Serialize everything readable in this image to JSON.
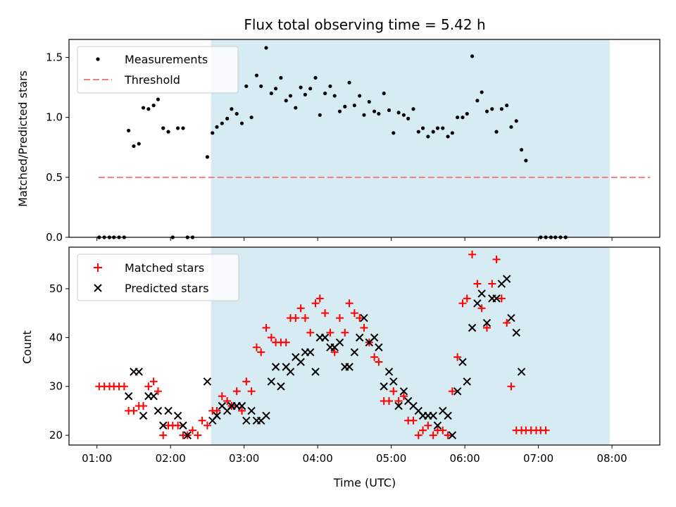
{
  "chart_data": [
    {
      "type": "scatter",
      "title": "Flux total observing time = 5.42 h",
      "ylabel": "Matched/Predicted stars",
      "ylim": [
        0,
        1.65
      ],
      "yticks": [
        "0.0",
        "0.5",
        "1.0",
        "1.5"
      ],
      "xlim": [
        0.62,
        8.65
      ],
      "shaded_span": [
        2.55,
        7.97
      ],
      "shade_color": "#add8e6",
      "threshold": {
        "value": 0.5,
        "x_range": [
          1.02,
          8.52
        ],
        "color": "#f08080"
      },
      "legend_position": "upper left",
      "legend": [
        {
          "label": "Measurements",
          "marker": "dot",
          "color": "#000000"
        },
        {
          "label": "Threshold",
          "marker": "dashed-line",
          "color": "#f08080"
        }
      ],
      "series": [
        {
          "name": "Measurements",
          "points": [
            [
              1.03,
              0
            ],
            [
              1.1,
              0
            ],
            [
              1.17,
              0
            ],
            [
              1.23,
              0
            ],
            [
              1.3,
              0
            ],
            [
              1.37,
              0
            ],
            [
              1.43,
              0.89
            ],
            [
              1.5,
              0.76
            ],
            [
              1.57,
              0.78
            ],
            [
              1.63,
              1.08
            ],
            [
              1.7,
              1.07
            ],
            [
              1.77,
              1.1
            ],
            [
              1.83,
              1.15
            ],
            [
              1.9,
              0.91
            ],
            [
              1.97,
              0.88
            ],
            [
              2.03,
              0
            ],
            [
              2.1,
              0.91
            ],
            [
              2.17,
              0.91
            ],
            [
              2.23,
              0
            ],
            [
              2.3,
              0
            ],
            [
              2.5,
              0.67
            ],
            [
              2.57,
              0.87
            ],
            [
              2.63,
              0.92
            ],
            [
              2.7,
              0.95
            ],
            [
              2.77,
              0.99
            ],
            [
              2.83,
              1.07
            ],
            [
              2.9,
              1.03
            ],
            [
              2.97,
              0.95
            ],
            [
              3.03,
              1.26
            ],
            [
              3.1,
              1.0
            ],
            [
              3.17,
              1.35
            ],
            [
              3.23,
              1.26
            ],
            [
              3.3,
              1.58
            ],
            [
              3.37,
              1.2
            ],
            [
              3.43,
              1.24
            ],
            [
              3.5,
              1.33
            ],
            [
              3.57,
              1.14
            ],
            [
              3.63,
              1.18
            ],
            [
              3.7,
              1.08
            ],
            [
              3.77,
              1.25
            ],
            [
              3.83,
              1.19
            ],
            [
              3.9,
              1.24
            ],
            [
              3.97,
              1.33
            ],
            [
              4.03,
              1.02
            ],
            [
              4.1,
              1.2
            ],
            [
              4.17,
              1.26
            ],
            [
              4.23,
              1.18
            ],
            [
              4.3,
              1.05
            ],
            [
              4.37,
              1.09
            ],
            [
              4.43,
              1.29
            ],
            [
              4.5,
              1.1
            ],
            [
              4.57,
              1.18
            ],
            [
              4.63,
              1.02
            ],
            [
              4.7,
              1.13
            ],
            [
              4.77,
              1.05
            ],
            [
              4.83,
              1.03
            ],
            [
              4.9,
              1.2
            ],
            [
              4.97,
              1.06
            ],
            [
              5.03,
              0.87
            ],
            [
              5.1,
              1.04
            ],
            [
              5.17,
              1.02
            ],
            [
              5.23,
              0.99
            ],
            [
              5.3,
              1.07
            ],
            [
              5.37,
              0.88
            ],
            [
              5.43,
              0.91
            ],
            [
              5.5,
              0.84
            ],
            [
              5.57,
              0.88
            ],
            [
              5.63,
              0.91
            ],
            [
              5.7,
              0.91
            ],
            [
              5.77,
              0.84
            ],
            [
              5.83,
              0.87
            ],
            [
              5.9,
              1.0
            ],
            [
              5.97,
              1.0
            ],
            [
              6.03,
              1.03
            ],
            [
              6.1,
              1.51
            ],
            [
              6.17,
              1.14
            ],
            [
              6.23,
              1.21
            ],
            [
              6.3,
              1.05
            ],
            [
              6.37,
              1.07
            ],
            [
              6.43,
              0.88
            ],
            [
              6.5,
              1.07
            ],
            [
              6.57,
              1.1
            ],
            [
              6.63,
              0.92
            ],
            [
              6.7,
              0.97
            ],
            [
              6.77,
              0.73
            ],
            [
              6.83,
              0.64
            ],
            [
              7.03,
              0
            ],
            [
              7.1,
              0
            ],
            [
              7.17,
              0
            ],
            [
              7.23,
              0
            ],
            [
              7.3,
              0
            ],
            [
              7.37,
              0
            ]
          ]
        }
      ]
    },
    {
      "type": "scatter",
      "xlabel": "Time (UTC)",
      "ylabel": "Count",
      "ylim": [
        18,
        58.5
      ],
      "yticks": [
        "20",
        "30",
        "40",
        "50"
      ],
      "xticks": [
        "01:00",
        "02:00",
        "03:00",
        "04:00",
        "05:00",
        "06:00",
        "07:00",
        "08:00"
      ],
      "xlim": [
        0.62,
        8.65
      ],
      "shaded_span": [
        2.55,
        7.97
      ],
      "shade_color": "#add8e6",
      "legend_position": "upper left",
      "legend": [
        {
          "label": "Matched stars",
          "marker": "plus",
          "color": "#ff0000"
        },
        {
          "label": "Predicted stars",
          "marker": "x",
          "color": "#000000"
        }
      ],
      "series": [
        {
          "name": "Matched stars",
          "points": [
            [
              1.03,
              30
            ],
            [
              1.1,
              30
            ],
            [
              1.17,
              30
            ],
            [
              1.23,
              30
            ],
            [
              1.3,
              30
            ],
            [
              1.37,
              30
            ],
            [
              1.43,
              25
            ],
            [
              1.5,
              25
            ],
            [
              1.57,
              26
            ],
            [
              1.63,
              26
            ],
            [
              1.7,
              30
            ],
            [
              1.77,
              31
            ],
            [
              1.83,
              29
            ],
            [
              1.9,
              20
            ],
            [
              1.97,
              22
            ],
            [
              2.03,
              22
            ],
            [
              2.1,
              22
            ],
            [
              2.17,
              20
            ],
            [
              2.23,
              20
            ],
            [
              2.3,
              21
            ],
            [
              2.37,
              20
            ],
            [
              2.43,
              23
            ],
            [
              2.5,
              22
            ],
            [
              2.57,
              25
            ],
            [
              2.63,
              25
            ],
            [
              2.7,
              28
            ],
            [
              2.77,
              27
            ],
            [
              2.83,
              26
            ],
            [
              2.9,
              29
            ],
            [
              2.97,
              25
            ],
            [
              3.03,
              31
            ],
            [
              3.1,
              29
            ],
            [
              3.17,
              38
            ],
            [
              3.23,
              37
            ],
            [
              3.3,
              42
            ],
            [
              3.37,
              40
            ],
            [
              3.43,
              39
            ],
            [
              3.5,
              39
            ],
            [
              3.57,
              39
            ],
            [
              3.63,
              44
            ],
            [
              3.7,
              44
            ],
            [
              3.77,
              46
            ],
            [
              3.83,
              44
            ],
            [
              3.9,
              41
            ],
            [
              3.97,
              47
            ],
            [
              4.03,
              48
            ],
            [
              4.1,
              45
            ],
            [
              4.17,
              41
            ],
            [
              4.23,
              37
            ],
            [
              4.3,
              44
            ],
            [
              4.37,
              41
            ],
            [
              4.43,
              47
            ],
            [
              4.5,
              45
            ],
            [
              4.57,
              44
            ],
            [
              4.63,
              42
            ],
            [
              4.7,
              39
            ],
            [
              4.77,
              36
            ],
            [
              4.83,
              35
            ],
            [
              4.9,
              27
            ],
            [
              4.97,
              27
            ],
            [
              5.03,
              29
            ],
            [
              5.1,
              27
            ],
            [
              5.17,
              28
            ],
            [
              5.23,
              23
            ],
            [
              5.3,
              23
            ],
            [
              5.37,
              20
            ],
            [
              5.43,
              21
            ],
            [
              5.5,
              22
            ],
            [
              5.57,
              20
            ],
            [
              5.63,
              21
            ],
            [
              5.7,
              21
            ],
            [
              5.77,
              20
            ],
            [
              5.83,
              29
            ],
            [
              5.9,
              36
            ],
            [
              5.97,
              47
            ],
            [
              6.03,
              48
            ],
            [
              6.1,
              57
            ],
            [
              6.17,
              51
            ],
            [
              6.23,
              46
            ],
            [
              6.3,
              42
            ],
            [
              6.37,
              51
            ],
            [
              6.43,
              56
            ],
            [
              6.5,
              48
            ],
            [
              6.57,
              43
            ],
            [
              6.63,
              30
            ],
            [
              6.7,
              21
            ],
            [
              6.77,
              21
            ],
            [
              6.83,
              21
            ],
            [
              6.9,
              21
            ],
            [
              6.97,
              21
            ],
            [
              7.03,
              21
            ],
            [
              7.1,
              21
            ]
          ]
        },
        {
          "name": "Predicted stars",
          "points": [
            [
              1.43,
              28
            ],
            [
              1.5,
              33
            ],
            [
              1.57,
              33
            ],
            [
              1.63,
              24
            ],
            [
              1.7,
              28
            ],
            [
              1.77,
              28
            ],
            [
              1.83,
              25
            ],
            [
              1.9,
              22
            ],
            [
              1.97,
              25
            ],
            [
              2.1,
              24
            ],
            [
              2.17,
              22
            ],
            [
              2.23,
              20
            ],
            [
              2.5,
              31
            ],
            [
              2.57,
              23
            ],
            [
              2.63,
              24
            ],
            [
              2.7,
              26
            ],
            [
              2.77,
              25
            ],
            [
              2.83,
              26
            ],
            [
              2.9,
              26
            ],
            [
              2.97,
              26
            ],
            [
              3.03,
              23
            ],
            [
              3.1,
              25
            ],
            [
              3.17,
              23
            ],
            [
              3.23,
              23
            ],
            [
              3.3,
              24
            ],
            [
              3.37,
              31
            ],
            [
              3.43,
              34
            ],
            [
              3.5,
              30
            ],
            [
              3.57,
              34
            ],
            [
              3.63,
              33
            ],
            [
              3.7,
              36
            ],
            [
              3.77,
              35
            ],
            [
              3.83,
              37
            ],
            [
              3.9,
              37
            ],
            [
              3.97,
              33
            ],
            [
              4.03,
              40
            ],
            [
              4.1,
              40
            ],
            [
              4.17,
              38
            ],
            [
              4.23,
              38
            ],
            [
              4.3,
              39
            ],
            [
              4.37,
              34
            ],
            [
              4.43,
              34
            ],
            [
              4.5,
              37
            ],
            [
              4.57,
              40
            ],
            [
              4.63,
              44
            ],
            [
              4.7,
              39
            ],
            [
              4.77,
              40
            ],
            [
              4.83,
              38
            ],
            [
              4.9,
              30
            ],
            [
              4.97,
              33
            ],
            [
              5.03,
              31
            ],
            [
              5.1,
              26
            ],
            [
              5.17,
              29
            ],
            [
              5.23,
              27
            ],
            [
              5.3,
              26
            ],
            [
              5.37,
              25
            ],
            [
              5.43,
              24
            ],
            [
              5.5,
              24
            ],
            [
              5.57,
              24
            ],
            [
              5.63,
              22
            ],
            [
              5.7,
              25
            ],
            [
              5.77,
              24
            ],
            [
              5.83,
              20
            ],
            [
              5.9,
              29
            ],
            [
              5.97,
              35
            ],
            [
              6.03,
              31
            ],
            [
              6.1,
              42
            ],
            [
              6.17,
              47
            ],
            [
              6.23,
              49
            ],
            [
              6.3,
              43
            ],
            [
              6.37,
              48
            ],
            [
              6.43,
              48
            ],
            [
              6.5,
              51
            ],
            [
              6.57,
              52
            ],
            [
              6.63,
              44
            ],
            [
              6.7,
              41
            ],
            [
              6.77,
              33
            ]
          ]
        }
      ]
    }
  ]
}
